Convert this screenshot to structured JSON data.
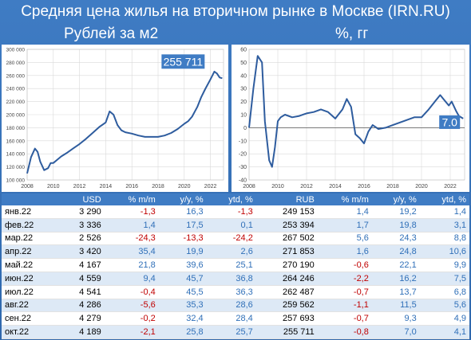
{
  "title": "Средняя цена жилья на вторичном рынке в Москве (IRN.RU)",
  "colors": {
    "accent": "#3f7cc4",
    "line": "#2e5c9e",
    "neg": "#c00000",
    "pos": "#2f6fb8"
  },
  "chart_data": [
    {
      "type": "line",
      "title": "Рублей за м2",
      "callout": "255 711",
      "xlim": [
        2008,
        2023
      ],
      "ylim": [
        100000,
        300000
      ],
      "xticks": [
        2008,
        2010,
        2012,
        2014,
        2016,
        2018,
        2020,
        2022
      ],
      "yticks": [
        100000,
        120000,
        140000,
        160000,
        180000,
        200000,
        220000,
        240000,
        260000,
        280000,
        300000
      ],
      "ytick_labels": [
        "100 000",
        "120 000",
        "140 000",
        "160 000",
        "180 000",
        "200 000",
        "220 000",
        "240 000",
        "260 000",
        "280 000",
        "300 000"
      ],
      "x": [
        2008.0,
        2008.3,
        2008.6,
        2008.8,
        2009.0,
        2009.3,
        2009.6,
        2009.8,
        2010.0,
        2010.3,
        2010.6,
        2011.0,
        2011.5,
        2012.0,
        2012.5,
        2013.0,
        2013.5,
        2014.0,
        2014.3,
        2014.6,
        2014.9,
        2015.2,
        2015.5,
        2016.0,
        2016.5,
        2017.0,
        2017.5,
        2018.0,
        2018.5,
        2019.0,
        2019.5,
        2020.0,
        2020.3,
        2020.6,
        2021.0,
        2021.3,
        2021.6,
        2022.0,
        2022.3,
        2022.5,
        2022.7,
        2022.9
      ],
      "y": [
        110000,
        135000,
        148000,
        143000,
        128000,
        115000,
        118000,
        126000,
        126000,
        131000,
        136000,
        141000,
        148000,
        155000,
        163000,
        172000,
        181000,
        188000,
        205000,
        200000,
        184000,
        176000,
        173000,
        171000,
        168000,
        166000,
        166000,
        166000,
        168000,
        172000,
        178000,
        186000,
        190000,
        197000,
        212000,
        227000,
        239000,
        254000,
        266000,
        263000,
        257000,
        255711
      ]
    },
    {
      "type": "line",
      "title": "%, гг",
      "callout": "7.0",
      "xlim": [
        2008,
        2023
      ],
      "ylim": [
        -40,
        60
      ],
      "xticks": [
        2008,
        2010,
        2012,
        2014,
        2016,
        2018,
        2020,
        2022
      ],
      "yticks": [
        -40,
        -30,
        -20,
        -10,
        0,
        10,
        20,
        30,
        40,
        50,
        60
      ],
      "x": [
        2008.0,
        2008.3,
        2008.6,
        2008.9,
        2009.1,
        2009.4,
        2009.6,
        2009.8,
        2010.0,
        2010.2,
        2010.5,
        2011.0,
        2011.5,
        2012.0,
        2012.5,
        2013.0,
        2013.5,
        2014.0,
        2014.5,
        2014.8,
        2015.1,
        2015.4,
        2015.7,
        2016.0,
        2016.3,
        2016.6,
        2017.0,
        2017.5,
        2018.0,
        2018.5,
        2019.0,
        2019.5,
        2020.0,
        2020.5,
        2021.0,
        2021.3,
        2021.6,
        2021.9,
        2022.1,
        2022.4,
        2022.6,
        2022.9
      ],
      "y": [
        0,
        30,
        55,
        50,
        5,
        -25,
        -30,
        -15,
        5,
        8,
        10,
        8,
        9,
        11,
        12,
        14,
        12,
        7,
        14,
        22,
        16,
        -5,
        -8,
        -12,
        -3,
        2,
        -1,
        0,
        2,
        4,
        6,
        8,
        8,
        14,
        21,
        25,
        21,
        17,
        20,
        13,
        9,
        7.0
      ]
    }
  ],
  "table": {
    "headers": [
      "",
      "USD",
      "% m/m",
      "y/y, %",
      "ytd, %",
      "RUB",
      "% m/m",
      "y/y, %",
      "ytd, %"
    ],
    "rows": [
      [
        "янв.22",
        "3 290",
        "-1,3",
        "16,3",
        "-1,3",
        "249 153",
        "1,4",
        "19,2",
        "1,4"
      ],
      [
        "фев.22",
        "3 336",
        "1,4",
        "17,5",
        "0,1",
        "253 394",
        "1,7",
        "19,8",
        "3,1"
      ],
      [
        "мар.22",
        "2 526",
        "-24,3",
        "-13,3",
        "-24,2",
        "267 502",
        "5,6",
        "24,3",
        "8,8"
      ],
      [
        "апр.22",
        "3 420",
        "35,4",
        "19,9",
        "2,6",
        "271 853",
        "1,6",
        "24,8",
        "10,6"
      ],
      [
        "май.22",
        "4 167",
        "21,8",
        "39,6",
        "25,1",
        "270 190",
        "-0,6",
        "22,1",
        "9,9"
      ],
      [
        "июн.22",
        "4 559",
        "9,4",
        "45,7",
        "36,8",
        "264 246",
        "-2,2",
        "16,2",
        "7,5"
      ],
      [
        "июл.22",
        "4 541",
        "-0,4",
        "45,5",
        "36,3",
        "262 487",
        "-0,7",
        "13,7",
        "6,8"
      ],
      [
        "авг.22",
        "4 286",
        "-5,6",
        "35,3",
        "28,6",
        "259 562",
        "-1,1",
        "11,5",
        "5,6"
      ],
      [
        "сен.22",
        "4 279",
        "-0,2",
        "32,4",
        "28,4",
        "257 693",
        "-0,7",
        "9,3",
        "4,9"
      ],
      [
        "окт.22",
        "4 189",
        "-2,1",
        "25,8",
        "25,7",
        "255 711",
        "-0,8",
        "7,0",
        "4,1"
      ]
    ]
  }
}
